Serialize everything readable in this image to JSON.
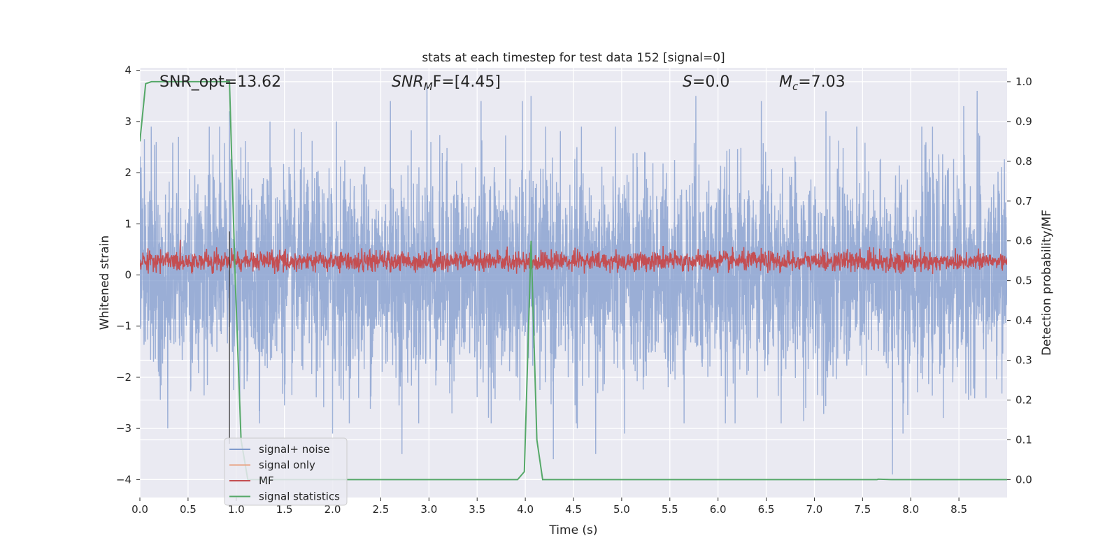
{
  "chart_data": {
    "type": "line",
    "title": "stats at each timestep for test data 152 [signal=0]",
    "xlabel": "Time (s)",
    "ylabel": "Whitened strain",
    "y2label": "Detection probability/MF",
    "xlim": [
      0.0,
      9.0
    ],
    "ylim": [
      -4.35,
      4.05
    ],
    "y2lim": [
      -0.045,
      1.035
    ],
    "xticks": [
      "0.0",
      "0.5",
      "1.0",
      "1.5",
      "2.0",
      "2.5",
      "3.0",
      "3.5",
      "4.0",
      "4.5",
      "5.0",
      "5.5",
      "6.0",
      "6.5",
      "7.0",
      "7.5",
      "8.0",
      "8.5"
    ],
    "yticks": [
      "4",
      "3",
      "2",
      "1",
      "0",
      "−1",
      "−2",
      "−3",
      "−4"
    ],
    "y2ticks": [
      "1.0",
      "0.9",
      "0.8",
      "0.7",
      "0.6",
      "0.5",
      "0.4",
      "0.3",
      "0.2",
      "0.1",
      "0.0"
    ],
    "grid": true,
    "legend_position": "lower-left",
    "annotations": {
      "snr_opt": "SNR_opt=13.62",
      "snr_mf_main": "SNR",
      "snr_mf_sub": "M",
      "snr_mf_rest": "F=[4.45]",
      "s_italic": "S",
      "s_rest": "=0.0",
      "mc_main": "M",
      "mc_sub": "c",
      "mc_rest": "=7.03"
    },
    "vline_x": 0.93,
    "series": [
      {
        "name": "signal+ noise",
        "color": "#7f9acc",
        "description": "whitened noise, approx. gaussian, |y| up to ~3.6",
        "amplitude_std": 1.0,
        "peaks": [
          [
            0.17,
            2.6
          ],
          [
            0.29,
            -3.0
          ],
          [
            0.4,
            -3.1
          ],
          [
            0.4,
            2.7
          ],
          [
            0.72,
            2.9
          ],
          [
            0.93,
            3.2
          ],
          [
            1.35,
            3.0
          ],
          [
            2.0,
            -3.1
          ],
          [
            2.04,
            3.0
          ],
          [
            2.6,
            3.4
          ],
          [
            2.72,
            -3.5
          ],
          [
            2.98,
            3.7
          ],
          [
            3.02,
            2.6
          ],
          [
            3.54,
            3.4
          ],
          [
            3.97,
            3.4
          ],
          [
            4.06,
            3.5
          ],
          [
            4.29,
            -3.6
          ],
          [
            4.54,
            -3.0
          ],
          [
            4.73,
            -3.5
          ],
          [
            5.03,
            -3.1
          ],
          [
            5.77,
            3.5
          ],
          [
            6.45,
            3.4
          ],
          [
            6.91,
            -2.6
          ],
          [
            7.12,
            3.2
          ],
          [
            7.81,
            -3.9
          ],
          [
            7.92,
            -3.1
          ],
          [
            8.55,
            3.3
          ],
          [
            8.69,
            3.6
          ]
        ]
      },
      {
        "name": "signal only",
        "color": "#e8a383",
        "values": []
      },
      {
        "name": "MF",
        "color": "#c44e52",
        "description": "matched filter output, roughly 0.0–0.6 on left axis",
        "mean": 0.27,
        "amplitude": 0.14
      },
      {
        "name": "signal statistics",
        "color": "#55a868",
        "axis": "right",
        "points": [
          [
            0.0,
            0.85
          ],
          [
            0.06,
            0.995
          ],
          [
            0.12,
            1.0
          ],
          [
            0.5,
            1.0
          ],
          [
            0.93,
            1.0
          ],
          [
            0.99,
            0.5
          ],
          [
            1.05,
            0.1
          ],
          [
            1.12,
            0.0
          ],
          [
            3.92,
            0.0
          ],
          [
            3.99,
            0.02
          ],
          [
            4.06,
            0.6
          ],
          [
            4.12,
            0.1
          ],
          [
            4.18,
            0.0
          ],
          [
            7.65,
            0.0
          ],
          [
            7.66,
            0.001
          ],
          [
            7.8,
            0.0
          ],
          [
            9.0,
            0.0
          ]
        ]
      }
    ]
  }
}
